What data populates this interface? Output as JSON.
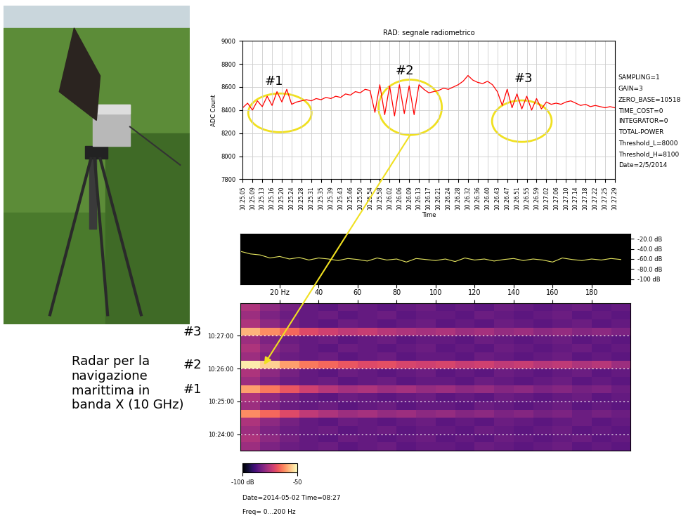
{
  "caption": [
    "Radar per la",
    "navigazione",
    "marittima in",
    "banda X (10 GHz)"
  ],
  "chart_data": [
    {
      "type": "line",
      "title": "RAD: segnale radiometrico",
      "x_label": "Time",
      "y_label": "ADC Count",
      "categories": [
        "10.25.05",
        null,
        "10.25.09",
        null,
        "10.25.13",
        null,
        "10.25.16",
        null,
        "10.25.20",
        null,
        "10.25.24",
        null,
        "10.25.28",
        null,
        "10.25.31",
        null,
        "10.25.35",
        null,
        "10.25.39",
        null,
        "10.25.43",
        null,
        "10.25.46",
        null,
        "10.25.50",
        null,
        "10.25.54",
        null,
        "10.25.58",
        null,
        "10.26.02",
        null,
        "10.26.06",
        null,
        "10.26.09",
        null,
        "10.26.13",
        null,
        "10.26.17",
        null,
        "10.26.21",
        null,
        "10.26.24",
        null,
        "10.26.28",
        null,
        "10.26.32",
        null,
        "10.26.36",
        null,
        "10.26.40",
        null,
        "10.26.43",
        null,
        "10.26.47",
        null,
        "10.26.51",
        null,
        "10.26.55",
        null,
        "10.26.59",
        null,
        "10.27.02",
        null,
        "10.27.06",
        null,
        "10.27.10",
        null,
        "10.27.14",
        null,
        "10.27.18",
        null,
        "10.27.22",
        null,
        "10.27.25",
        null,
        "10.27.29"
      ],
      "values": [
        8420,
        8460,
        8400,
        8480,
        8430,
        8520,
        8440,
        8560,
        8470,
        8580,
        8450,
        8470,
        8480,
        8490,
        8480,
        8500,
        8490,
        8510,
        8500,
        8520,
        8510,
        8540,
        8530,
        8560,
        8550,
        8580,
        8570,
        8380,
        8620,
        8360,
        8610,
        8350,
        8620,
        8370,
        8610,
        8360,
        8620,
        8580,
        8550,
        8560,
        8570,
        8590,
        8580,
        8600,
        8620,
        8650,
        8700,
        8660,
        8640,
        8630,
        8650,
        8620,
        8560,
        8440,
        8580,
        8420,
        8540,
        8410,
        8520,
        8400,
        8500,
        8410,
        8470,
        8450,
        8460,
        8450,
        8470,
        8480,
        8460,
        8440,
        8450,
        8430,
        8440,
        8430,
        8420,
        8430,
        8420
      ],
      "color": "#ff0000",
      "ylim": [
        7800,
        9000
      ],
      "yticks": [
        7800,
        8000,
        8200,
        8400,
        8600,
        8800,
        9000
      ],
      "grid": true,
      "annotations": [
        "#1",
        "#2",
        "#3"
      ],
      "parameters": [
        "SAMPLING=1",
        "GAIN=3",
        "ZERO_BASE=10518",
        "TIME_COST=0",
        "INTEGRATOR=0",
        "TOTAL-POWER",
        "Threshold_L=8000",
        "Threshold_H=8100",
        "Date=2/5/2014"
      ]
    },
    {
      "type": "line",
      "x": [
        0,
        5,
        10,
        15,
        20,
        25,
        30,
        35,
        40,
        45,
        50,
        55,
        60,
        65,
        70,
        75,
        80,
        85,
        90,
        95,
        100,
        105,
        110,
        115,
        120,
        125,
        130,
        135,
        140,
        145,
        150,
        155,
        160,
        165,
        170,
        175,
        180,
        185,
        190,
        195
      ],
      "values": [
        -45,
        -50,
        -52,
        -58,
        -55,
        -60,
        -57,
        -62,
        -58,
        -60,
        -63,
        -59,
        -61,
        -64,
        -58,
        -62,
        -60,
        -66,
        -59,
        -61,
        -63,
        -60,
        -65,
        -58,
        -62,
        -60,
        -64,
        -61,
        -59,
        -63,
        -60,
        -62,
        -66,
        -58,
        -61,
        -63,
        -60,
        -62,
        -59,
        -61
      ],
      "color": "#e8e860",
      "xlim": [
        0,
        200
      ],
      "xticks": [
        20,
        40,
        60,
        80,
        100,
        120,
        140,
        160,
        180
      ],
      "ylim": [
        -110,
        -10
      ],
      "yticks": [
        {
          "value": -20,
          "label": "-20.0 dB"
        },
        {
          "value": -40,
          "label": "-40.0 dB"
        },
        {
          "value": -60,
          "label": "-60.0 dB"
        },
        {
          "value": -80,
          "label": "-80.0 dB"
        },
        {
          "value": -100,
          "label": "-100 dB"
        }
      ],
      "tick_labels": "y",
      "grid": false
    },
    {
      "type": "heatmap",
      "x_edges": [
        0,
        10,
        20,
        30,
        40,
        50,
        60,
        70,
        80,
        90,
        100,
        110,
        120,
        130,
        140,
        150,
        160,
        170,
        180,
        190,
        200
      ],
      "y_edges": [
        37410,
        37425,
        37440,
        37455,
        37470,
        37485,
        37500,
        37515,
        37530,
        37545,
        37560,
        37575,
        37590,
        37605,
        37620,
        37635,
        37650,
        37665,
        37680
      ],
      "cells": [
        [
          -78,
          -82,
          -84,
          -85,
          -84,
          -86,
          -85,
          -84,
          -86,
          -85,
          -85,
          -86,
          -84,
          -85,
          -86,
          -85,
          -84,
          -86,
          -85,
          -86
        ],
        [
          -76,
          -80,
          -83,
          -85,
          -86,
          -84,
          -85,
          -86,
          -85,
          -84,
          -86,
          -85,
          -86,
          -84,
          -85,
          -86,
          -85,
          -84,
          -86,
          -85
        ],
        [
          -78,
          -82,
          -84,
          -85,
          -84,
          -86,
          -85,
          -84,
          -86,
          -85,
          -85,
          -86,
          -84,
          -85,
          -86,
          -85,
          -84,
          -86,
          -85,
          -86
        ],
        [
          -76,
          -80,
          -83,
          -85,
          -86,
          -84,
          -85,
          -86,
          -85,
          -84,
          -86,
          -85,
          -86,
          -84,
          -85,
          -86,
          -85,
          -84,
          -86,
          -85
        ],
        [
          -62,
          -66,
          -70,
          -74,
          -76,
          -78,
          -77,
          -79,
          -78,
          -80,
          -79,
          -81,
          -80,
          -82,
          -81,
          -83,
          -82,
          -84,
          -83,
          -84
        ],
        [
          -78,
          -82,
          -84,
          -85,
          -84,
          -86,
          -85,
          -84,
          -86,
          -85,
          -85,
          -86,
          -84,
          -85,
          -86,
          -85,
          -84,
          -86,
          -85,
          -86
        ],
        [
          -76,
          -80,
          -83,
          -85,
          -86,
          -84,
          -85,
          -86,
          -85,
          -84,
          -86,
          -85,
          -86,
          -84,
          -85,
          -86,
          -85,
          -84,
          -86,
          -85
        ],
        [
          -60,
          -64,
          -68,
          -72,
          -75,
          -77,
          -76,
          -78,
          -77,
          -79,
          -78,
          -80,
          -79,
          -81,
          -80,
          -82,
          -81,
          -83,
          -82,
          -84
        ],
        [
          -78,
          -82,
          -84,
          -85,
          -84,
          -86,
          -85,
          -84,
          -86,
          -85,
          -85,
          -86,
          -84,
          -85,
          -86,
          -85,
          -84,
          -86,
          -85,
          -86
        ],
        [
          -76,
          -80,
          -83,
          -85,
          -86,
          -84,
          -85,
          -86,
          -85,
          -84,
          -86,
          -85,
          -86,
          -84,
          -85,
          -86,
          -85,
          -84,
          -86,
          -85
        ],
        [
          -52,
          -55,
          -60,
          -64,
          -66,
          -68,
          -70,
          -69,
          -71,
          -72,
          -71,
          -73,
          -72,
          -74,
          -73,
          -75,
          -74,
          -76,
          -75,
          -78
        ],
        [
          -78,
          -82,
          -84,
          -85,
          -84,
          -86,
          -85,
          -84,
          -86,
          -85,
          -85,
          -86,
          -84,
          -85,
          -86,
          -85,
          -84,
          -86,
          -85,
          -86
        ],
        [
          -76,
          -80,
          -83,
          -85,
          -86,
          -84,
          -85,
          -86,
          -85,
          -84,
          -86,
          -85,
          -86,
          -84,
          -85,
          -86,
          -85,
          -84,
          -86,
          -85
        ],
        [
          -78,
          -82,
          -84,
          -85,
          -84,
          -86,
          -85,
          -84,
          -86,
          -85,
          -85,
          -86,
          -84,
          -85,
          -86,
          -85,
          -84,
          -86,
          -85,
          -86
        ],
        [
          -58,
          -62,
          -66,
          -70,
          -72,
          -74,
          -73,
          -75,
          -76,
          -77,
          -76,
          -78,
          -77,
          -79,
          -78,
          -80,
          -79,
          -81,
          -80,
          -82
        ],
        [
          -76,
          -80,
          -83,
          -85,
          -86,
          -84,
          -85,
          -86,
          -85,
          -84,
          -86,
          -85,
          -86,
          -84,
          -85,
          -86,
          -85,
          -84,
          -86,
          -85
        ],
        [
          -78,
          -82,
          -84,
          -85,
          -84,
          -86,
          -85,
          -84,
          -86,
          -85,
          -85,
          -86,
          -84,
          -85,
          -86,
          -85,
          -84,
          -86,
          -85,
          -86
        ],
        [
          -76,
          -80,
          -83,
          -85,
          -86,
          -84,
          -85,
          -86,
          -85,
          -84,
          -86,
          -85,
          -86,
          -84,
          -85,
          -86,
          -85,
          -84,
          -86,
          -85
        ]
      ],
      "xlim": [
        0,
        200
      ],
      "xticks": [
        {
          "value": 20,
          "label": "20 Hz"
        },
        40,
        60,
        80,
        100,
        120,
        140,
        160,
        180
      ],
      "ylim": [
        37410,
        37680
      ],
      "yticks": [
        {
          "value": 37440,
          "label": "10:24:00"
        },
        {
          "value": 37500,
          "label": "10:25:00"
        },
        {
          "value": 37560,
          "label": "10:26:00"
        },
        {
          "value": 37620,
          "label": "10:27:00"
        }
      ],
      "grid": true,
      "colorbar": {
        "range": [
          -100,
          -50
        ],
        "ticks": [
          {
            "value": -100,
            "label": "-100 dB"
          },
          -50
        ]
      },
      "annotations": [
        {
          "text": "#3",
          "y": 37627
        },
        {
          "text": "#2",
          "y": 37567
        },
        {
          "text": "#1",
          "y": 37522
        }
      ],
      "footer": [
        "Date=2014-05-02 Time=08:27",
        "Freq= 0...200 Hz"
      ]
    }
  ]
}
